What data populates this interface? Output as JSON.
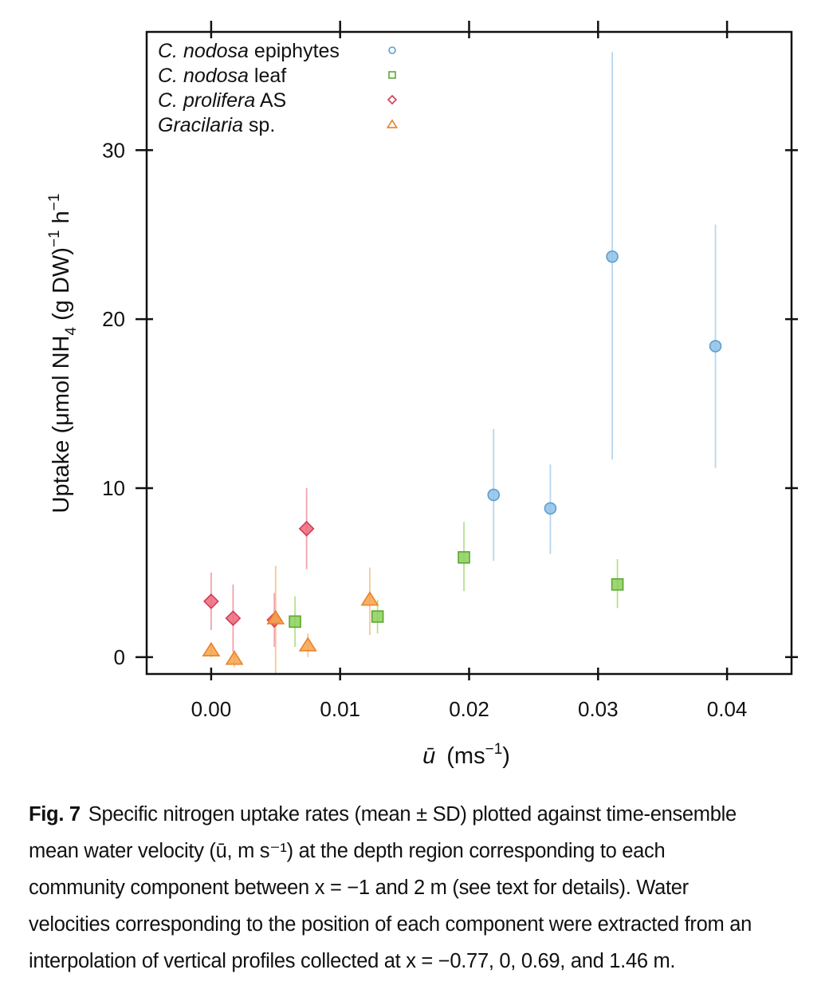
{
  "chart_data": {
    "type": "scatter",
    "xlabel_symbol": "ū",
    "xlabel_unit": "(ms",
    "xlabel_exp": "−1",
    "xlabel_close": ")",
    "ylabel_pre": "Uptake (μmol NH",
    "ylabel_sub": "4",
    "ylabel_mid": " (g DW)",
    "ylabel_sup1": "−1",
    "ylabel_h": " h",
    "ylabel_sup2": "−1",
    "xlim": [
      -0.005,
      0.045
    ],
    "ylim": [
      -1,
      37
    ],
    "x_ticks": [
      0.0,
      0.01,
      0.02,
      0.03,
      0.04
    ],
    "x_tick_labels": [
      "0.00",
      "0.01",
      "0.02",
      "0.03",
      "0.04"
    ],
    "y_ticks": [
      0,
      10,
      20,
      30
    ],
    "y_tick_labels": [
      "0",
      "10",
      "20",
      "30"
    ],
    "legend_position": "top-left",
    "grid": false,
    "series": [
      {
        "name_italic": "C. nodosa",
        "name_rest": " epiphytes",
        "marker": "circle",
        "color": "#8fc1e6",
        "stroke": "#5a9fd0",
        "errcolor": "#b6d6ee",
        "points": [
          {
            "x": 0.0219,
            "y": 9.6,
            "lo": 5.7,
            "hi": 13.5
          },
          {
            "x": 0.0263,
            "y": 8.8,
            "lo": 6.1,
            "hi": 11.4
          },
          {
            "x": 0.0311,
            "y": 23.7,
            "lo": 11.7,
            "hi": 35.8
          },
          {
            "x": 0.0391,
            "y": 18.4,
            "lo": 11.2,
            "hi": 25.6
          }
        ]
      },
      {
        "name_italic": "C. nodosa",
        "name_rest": " leaf",
        "marker": "square",
        "color": "#8ccf5a",
        "stroke": "#5aa832",
        "errcolor": "#b8e092",
        "points": [
          {
            "x": 0.0065,
            "y": 2.1,
            "lo": 0.6,
            "hi": 3.6
          },
          {
            "x": 0.0129,
            "y": 2.4,
            "lo": 1.4,
            "hi": 3.4
          },
          {
            "x": 0.0196,
            "y": 5.9,
            "lo": 3.9,
            "hi": 8.0
          },
          {
            "x": 0.0315,
            "y": 4.3,
            "lo": 2.9,
            "hi": 5.8
          }
        ]
      },
      {
        "name_italic": "C. prolifera",
        "name_rest": " AS",
        "marker": "diamond",
        "color": "#ec6a7c",
        "stroke": "#d53a55",
        "errcolor": "#f2a2ae",
        "points": [
          {
            "x": 0.0,
            "y": 3.3,
            "lo": 1.6,
            "hi": 5.0
          },
          {
            "x": 0.0017,
            "y": 2.3,
            "lo": 0.3,
            "hi": 4.3
          },
          {
            "x": 0.0049,
            "y": 2.2,
            "lo": 0.6,
            "hi": 3.8
          },
          {
            "x": 0.0074,
            "y": 7.6,
            "lo": 5.2,
            "hi": 10.0
          }
        ]
      },
      {
        "name_italic": "Gracilaria",
        "name_rest": " sp.",
        "marker": "triangle",
        "color": "#f7a34a",
        "stroke": "#e9822a",
        "errcolor": "#f8c896",
        "points": [
          {
            "x": 0.0,
            "y": 0.4,
            "lo": 0.0,
            "hi": 0.8
          },
          {
            "x": 0.0018,
            "y": -0.1,
            "lo": -0.6,
            "hi": 0.4
          },
          {
            "x": 0.005,
            "y": 2.3,
            "lo": -1.0,
            "hi": 5.4
          },
          {
            "x": 0.0075,
            "y": 0.7,
            "lo": 0.0,
            "hi": 1.4
          },
          {
            "x": 0.0123,
            "y": 3.4,
            "lo": 1.3,
            "hi": 5.3
          }
        ]
      }
    ]
  },
  "caption": {
    "fig_label": "Fig. 7",
    "lines": [
      "Specific nitrogen uptake rates (mean ± SD) plotted against time-ensemble",
      "mean water velocity (ū, m s⁻¹) at the depth region corresponding to each",
      "community component between x = −1 and 2 m (see text for details). Water",
      "velocities corresponding to the position of each component were extracted from an",
      "interpolation of vertical profiles collected at x = −0.77, 0, 0.69, and 1.46 m."
    ]
  }
}
